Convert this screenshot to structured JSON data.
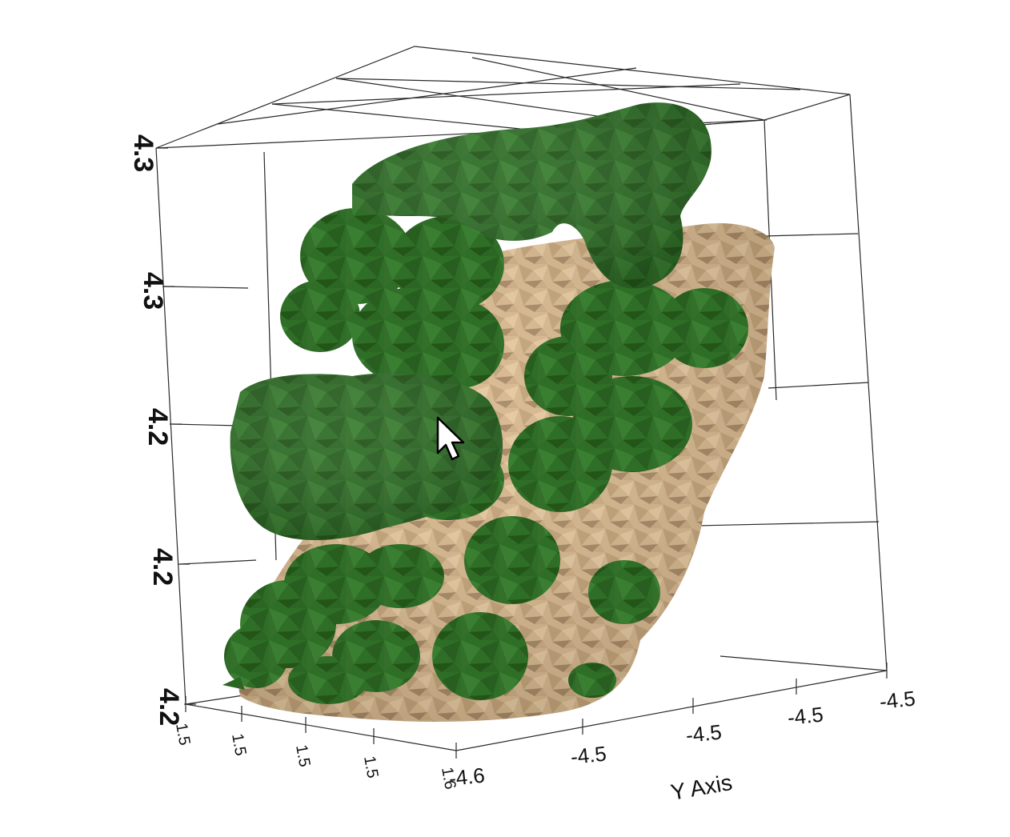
{
  "viewport": {
    "background": "#ffffff",
    "colors": {
      "green_surface": "#2e6b26",
      "green_dark": "#1f4f1a",
      "green_light": "#3f8536",
      "tan_surface": "#d4b48a",
      "tan_dark": "#a88a66",
      "grid": "#2a2a2a"
    },
    "z_axis": {
      "tick_labels": [
        "4.3",
        "4.3",
        "4.2",
        "4.2",
        "4.2"
      ]
    },
    "x_axis": {
      "tick_labels": [
        "1.5",
        "1.5",
        "1.5",
        "1.5",
        "1.6"
      ]
    },
    "y_axis": {
      "title": "Y Axis",
      "tick_labels": [
        "-4.6",
        "-4.5",
        "-4.5",
        "-4.5",
        "-4.5"
      ]
    },
    "cursor": "arrow-pointer-icon"
  }
}
